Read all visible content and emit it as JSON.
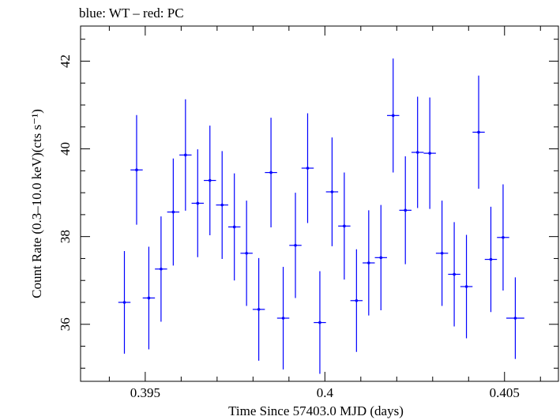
{
  "chart_data": {
    "type": "scatter",
    "title": "blue: WT – red: PC",
    "xlabel": "Time Since 57403.0 MJD (days)",
    "ylabel": "Count Rate (0.3–10.0 keV)(cts s⁻¹)",
    "xlim": [
      0.3932,
      0.4065
    ],
    "ylim": [
      34.7,
      42.8
    ],
    "x_ticks": [
      0.395,
      0.4,
      0.405
    ],
    "x_tick_labels": [
      "0.395",
      "0.4",
      "0.405"
    ],
    "y_ticks": [
      36,
      38,
      40,
      42
    ],
    "y_tick_labels": [
      "36",
      "38",
      "40",
      "42"
    ],
    "grid": false,
    "series": [
      {
        "name": "WT",
        "color": "#0000ff",
        "points": [
          {
            "x": 0.39442,
            "y": 36.5,
            "xerr": 0.00017,
            "yerr": 1.17
          },
          {
            "x": 0.39476,
            "y": 39.52,
            "xerr": 0.00017,
            "yerr": 1.25
          },
          {
            "x": 0.3951,
            "y": 36.6,
            "xerr": 0.00017,
            "yerr": 1.17
          },
          {
            "x": 0.39544,
            "y": 37.26,
            "xerr": 0.00017,
            "yerr": 1.2
          },
          {
            "x": 0.39578,
            "y": 38.56,
            "xerr": 0.00017,
            "yerr": 1.22
          },
          {
            "x": 0.39612,
            "y": 39.86,
            "xerr": 0.00017,
            "yerr": 1.27
          },
          {
            "x": 0.39646,
            "y": 38.76,
            "xerr": 0.00017,
            "yerr": 1.23
          },
          {
            "x": 0.3968,
            "y": 39.28,
            "xerr": 0.00017,
            "yerr": 1.25
          },
          {
            "x": 0.39714,
            "y": 38.72,
            "xerr": 0.00017,
            "yerr": 1.23
          },
          {
            "x": 0.39748,
            "y": 38.22,
            "xerr": 0.00017,
            "yerr": 1.22
          },
          {
            "x": 0.39782,
            "y": 37.62,
            "xerr": 0.00017,
            "yerr": 1.2
          },
          {
            "x": 0.39816,
            "y": 36.34,
            "xerr": 0.00017,
            "yerr": 1.17
          },
          {
            "x": 0.3985,
            "y": 39.46,
            "xerr": 0.00017,
            "yerr": 1.25
          },
          {
            "x": 0.39884,
            "y": 36.14,
            "xerr": 0.00017,
            "yerr": 1.17
          },
          {
            "x": 0.39918,
            "y": 37.8,
            "xerr": 0.00017,
            "yerr": 1.2
          },
          {
            "x": 0.39952,
            "y": 39.56,
            "xerr": 0.00017,
            "yerr": 1.25
          },
          {
            "x": 0.39986,
            "y": 36.04,
            "xerr": 0.00017,
            "yerr": 1.17
          },
          {
            "x": 0.4002,
            "y": 39.02,
            "xerr": 0.00017,
            "yerr": 1.24
          },
          {
            "x": 0.40054,
            "y": 38.24,
            "xerr": 0.00017,
            "yerr": 1.22
          },
          {
            "x": 0.40088,
            "y": 36.54,
            "xerr": 0.00017,
            "yerr": 1.17
          },
          {
            "x": 0.40122,
            "y": 37.4,
            "xerr": 0.00017,
            "yerr": 1.2
          },
          {
            "x": 0.40156,
            "y": 37.52,
            "xerr": 0.00017,
            "yerr": 1.2
          },
          {
            "x": 0.4019,
            "y": 40.76,
            "xerr": 0.00017,
            "yerr": 1.3
          },
          {
            "x": 0.40224,
            "y": 38.6,
            "xerr": 0.00017,
            "yerr": 1.23
          },
          {
            "x": 0.40258,
            "y": 39.92,
            "xerr": 0.00017,
            "yerr": 1.27
          },
          {
            "x": 0.40292,
            "y": 39.9,
            "xerr": 0.00017,
            "yerr": 1.27
          },
          {
            "x": 0.40326,
            "y": 37.62,
            "xerr": 0.00017,
            "yerr": 1.2
          },
          {
            "x": 0.4036,
            "y": 37.14,
            "xerr": 0.00017,
            "yerr": 1.19
          },
          {
            "x": 0.40394,
            "y": 36.86,
            "xerr": 0.00017,
            "yerr": 1.18
          },
          {
            "x": 0.40428,
            "y": 40.38,
            "xerr": 0.00017,
            "yerr": 1.29
          },
          {
            "x": 0.40462,
            "y": 37.48,
            "xerr": 0.00017,
            "yerr": 1.2
          },
          {
            "x": 0.40496,
            "y": 37.98,
            "xerr": 0.00017,
            "yerr": 1.21
          },
          {
            "x": 0.4053,
            "y": 36.14,
            "xerr": 0.00025,
            "yerr": 0.93
          }
        ]
      }
    ]
  }
}
